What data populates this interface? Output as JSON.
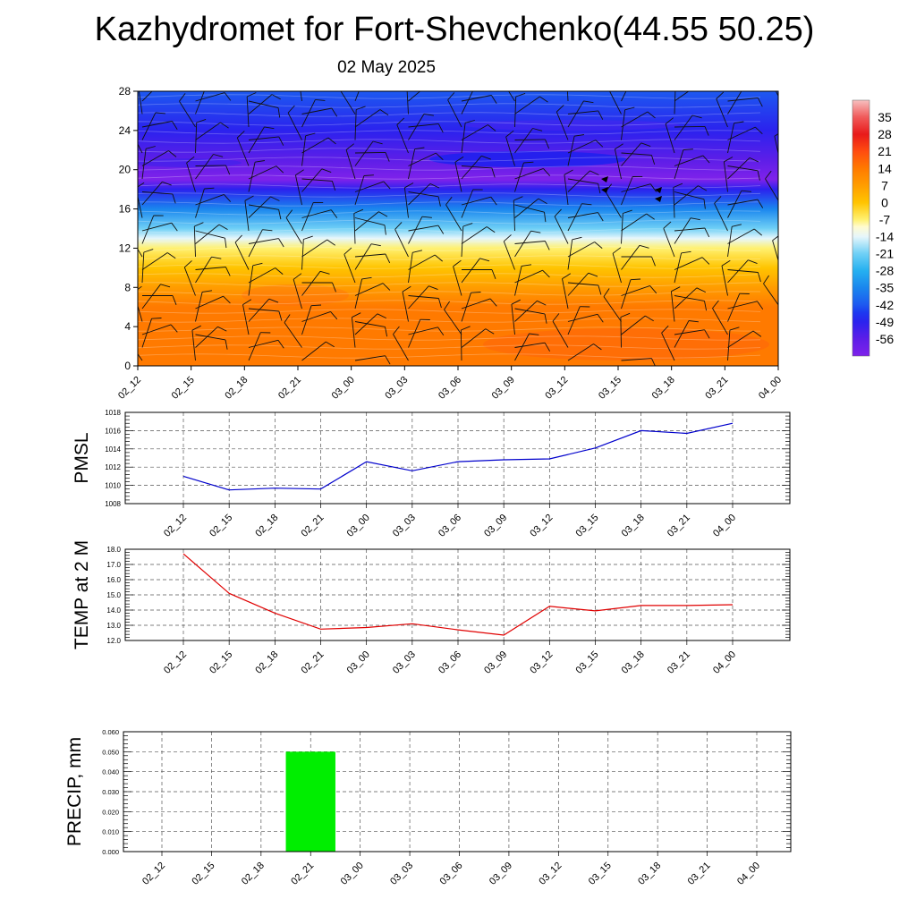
{
  "title": "Kazhydromet for Fort-Shevchenko(44.55 50.25)",
  "subtitle": "02 May 2025",
  "chart_data": [
    {
      "type": "heatmap",
      "name": "wind-temperature-cross-section",
      "x_ticks": [
        "02_12",
        "02_15",
        "02_18",
        "02_21",
        "03_00",
        "03_03",
        "03_06",
        "03_09",
        "03_12",
        "03_15",
        "03_18",
        "03_21",
        "04_00"
      ],
      "y_ticks": [
        "0",
        "4",
        "8",
        "12",
        "16",
        "20",
        "24",
        "28"
      ],
      "ylim": [
        0,
        28
      ],
      "colorbar": {
        "labels": [
          "35",
          "28",
          "21",
          "14",
          "7",
          "0",
          "-7",
          "-14",
          "-21",
          "-28",
          "-35",
          "-42",
          "-49",
          "-56"
        ],
        "range": [
          -63,
          42
        ]
      },
      "temperature_profile": [
        {
          "y": 0,
          "v": 20
        },
        {
          "y": 3,
          "v": 19
        },
        {
          "y": 6,
          "v": 17
        },
        {
          "y": 8,
          "v": 14
        },
        {
          "y": 10,
          "v": 6
        },
        {
          "y": 12,
          "v": -3
        },
        {
          "y": 13,
          "v": -10
        },
        {
          "y": 14,
          "v": -18
        },
        {
          "y": 16,
          "v": -32
        },
        {
          "y": 18,
          "v": -48
        },
        {
          "y": 19,
          "v": -56
        },
        {
          "y": 21,
          "v": -52
        },
        {
          "y": 24,
          "v": -46
        },
        {
          "y": 28,
          "v": -40
        }
      ],
      "grid": false,
      "wind_barbs": true
    },
    {
      "type": "line",
      "name": "pmsl",
      "ylabel": "PMSL",
      "x": [
        "02_12",
        "02_15",
        "02_18",
        "02_21",
        "03_00",
        "03_03",
        "03_06",
        "03_09",
        "03_12",
        "03_15",
        "03_18",
        "03_21",
        "04_00"
      ],
      "values": [
        1011.0,
        1009.5,
        1009.7,
        1009.6,
        1012.6,
        1011.6,
        1012.6,
        1012.8,
        1012.9,
        1014.1,
        1016.0,
        1015.7,
        1016.8
      ],
      "y_ticks": [
        "1008",
        "1010",
        "1012",
        "1014",
        "1016",
        "1018"
      ],
      "ylim": [
        1008,
        1018
      ],
      "color": "#0000cc",
      "grid": true
    },
    {
      "type": "line",
      "name": "temperature-2m",
      "ylabel": "TEMP at 2 M",
      "x": [
        "02_12",
        "02_15",
        "02_18",
        "02_21",
        "03_00",
        "03_03",
        "03_06",
        "03_09",
        "03_12",
        "03_15",
        "03_18",
        "03_21",
        "04_00"
      ],
      "values": [
        17.7,
        15.1,
        13.8,
        12.75,
        12.85,
        13.1,
        12.7,
        12.35,
        14.25,
        13.95,
        14.3,
        14.3,
        14.35
      ],
      "y_ticks": [
        "12.0",
        "13.0",
        "14.0",
        "15.0",
        "16.0",
        "17.0",
        "18.0"
      ],
      "ylim": [
        12,
        18
      ],
      "color": "#e00000",
      "grid": true
    },
    {
      "type": "bar",
      "name": "precipitation",
      "ylabel": "PRECIP, mm",
      "categories": [
        "02_12",
        "02_15",
        "02_18",
        "02_21",
        "03_00",
        "03_03",
        "03_06",
        "03_09",
        "03_12",
        "03_15",
        "03_18",
        "03_21",
        "04_00"
      ],
      "values": [
        0,
        0,
        0,
        0.05,
        0,
        0,
        0,
        0,
        0,
        0,
        0,
        0,
        0
      ],
      "y_ticks": [
        "0.000",
        "0.010",
        "0.020",
        "0.030",
        "0.040",
        "0.050",
        "0.060"
      ],
      "ylim": [
        0,
        0.06
      ],
      "color": "#00ee00",
      "grid": true
    }
  ]
}
